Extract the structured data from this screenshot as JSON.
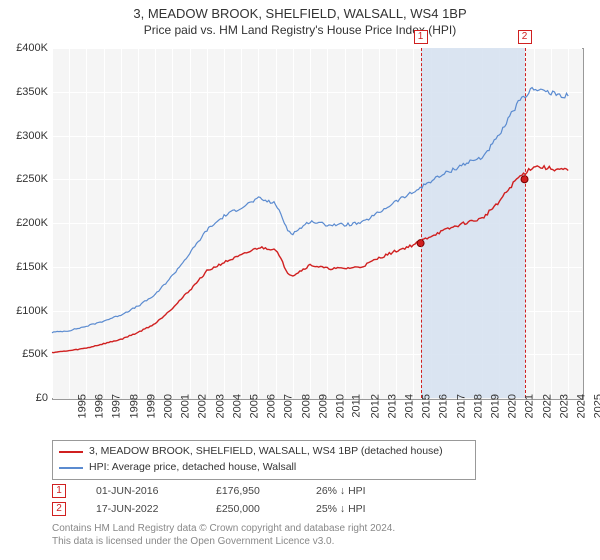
{
  "title": "3, MEADOW BROOK, SHELFIELD, WALSALL, WS4 1BP",
  "subtitle": "Price paid vs. HM Land Registry's House Price Index (HPI)",
  "chart": {
    "type": "line",
    "background_color": "#f5f5f5",
    "grid_color": "#ffffff",
    "ylim": [
      0,
      400000
    ],
    "ytick_step": 50000,
    "ytick_labels": [
      "£0",
      "£50K",
      "£100K",
      "£150K",
      "£200K",
      "£250K",
      "£300K",
      "£350K",
      "£400K"
    ],
    "x_years": [
      1995,
      1996,
      1997,
      1998,
      1999,
      2000,
      2001,
      2002,
      2003,
      2004,
      2005,
      2006,
      2007,
      2008,
      2009,
      2010,
      2011,
      2012,
      2013,
      2014,
      2015,
      2016,
      2017,
      2018,
      2019,
      2020,
      2021,
      2022,
      2023,
      2024,
      2025
    ],
    "x_range": [
      1995,
      2025.8
    ],
    "series": [
      {
        "id": "property",
        "color": "#d02020",
        "width": 1.4,
        "label": "3, MEADOW BROOK, SHELFIELD, WALSALL, WS4 1BP (detached house)",
        "years": [
          1995,
          1996,
          1997,
          1998,
          1999,
          2000,
          2001,
          2002,
          2003,
          2004,
          2005,
          2006,
          2007,
          2008,
          2008.7,
          2009,
          2010,
          2011,
          2012,
          2013,
          2014,
          2015,
          2016,
          2017,
          2018,
          2019,
          2020,
          2021,
          2022,
          2023,
          2024,
          2025
        ],
        "values": [
          52000,
          54000,
          57000,
          62000,
          67000,
          75000,
          85000,
          103000,
          123000,
          145000,
          155000,
          163000,
          172000,
          170000,
          143000,
          140000,
          152000,
          148000,
          148000,
          150000,
          160000,
          168000,
          175000,
          185000,
          193000,
          200000,
          205000,
          225000,
          250000,
          265000,
          262000,
          260000
        ]
      },
      {
        "id": "hpi",
        "color": "#5b8bd0",
        "width": 1.2,
        "label": "HPI: Average price, detached house, Walsall",
        "years": [
          1995,
          1996,
          1997,
          1998,
          1999,
          2000,
          2001,
          2002,
          2003,
          2004,
          2005,
          2006,
          2007,
          2008,
          2008.7,
          2009,
          2010,
          2011,
          2012,
          2013,
          2014,
          2015,
          2016,
          2017,
          2018,
          2019,
          2020,
          2021,
          2022,
          2023,
          2024,
          2025
        ],
        "values": [
          75000,
          77000,
          82000,
          88000,
          95000,
          105000,
          118000,
          140000,
          165000,
          192000,
          208000,
          218000,
          228000,
          222000,
          192000,
          188000,
          202000,
          198000,
          198000,
          200000,
          212000,
          225000,
          235000,
          248000,
          258000,
          268000,
          275000,
          300000,
          335000,
          355000,
          348000,
          345000
        ]
      }
    ],
    "sale_band": {
      "start_year": 2016.42,
      "end_year": 2022.46,
      "color": "#d5e0f0"
    },
    "sale_markers": [
      {
        "n": "1",
        "year": 2016.42,
        "value": 176950
      },
      {
        "n": "2",
        "year": 2022.46,
        "value": 250000
      }
    ]
  },
  "legend": {
    "rows": [
      {
        "color": "#d02020",
        "label": "3, MEADOW BROOK, SHELFIELD, WALSALL, WS4 1BP (detached house)"
      },
      {
        "color": "#5b8bd0",
        "label": "HPI: Average price, detached house, Walsall"
      }
    ]
  },
  "sales_table": {
    "rows": [
      {
        "n": "1",
        "date": "01-JUN-2016",
        "price": "£176,950",
        "delta": "26% ↓ HPI"
      },
      {
        "n": "2",
        "date": "17-JUN-2022",
        "price": "£250,000",
        "delta": "25% ↓ HPI"
      }
    ]
  },
  "footer_line1": "Contains HM Land Registry data © Crown copyright and database right 2024.",
  "footer_line2": "This data is licensed under the Open Government Licence v3.0."
}
